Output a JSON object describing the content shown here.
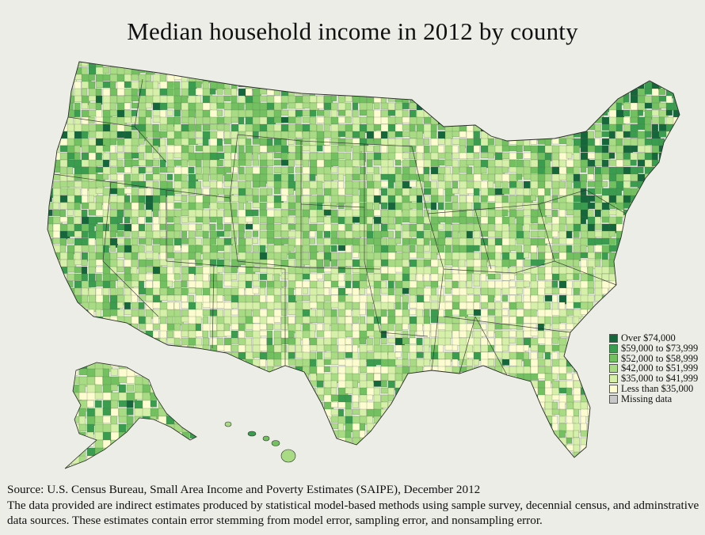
{
  "title": "Median household income in 2012 by county",
  "legend": {
    "items": [
      {
        "label": "Over $74,000",
        "color": "#15663a"
      },
      {
        "label": "$59,000 to $73,999",
        "color": "#3a9c4e"
      },
      {
        "label": "$52,000 to $58,999",
        "color": "#72c060"
      },
      {
        "label": "$42,000 to $51,999",
        "color": "#a8db83"
      },
      {
        "label": "$35,000 to $41,999",
        "color": "#d6efa9"
      },
      {
        "label": "Less than $35,000",
        "color": "#fcfcd0"
      },
      {
        "label": "Missing data",
        "color": "#c8c8c8"
      }
    ]
  },
  "source": {
    "line1": "Source: U.S. Census Bureau, Small Area Income and Poverty Estimates (SAIPE), December 2012",
    "line2": "The data provided are indirect estimates produced by statistical model-based methods using sample survey, decennial census, and adminstrative data sources. These estimates contain error stemming from model error, sampling error, and nonsampling error."
  },
  "colors": {
    "background": "#ecede6",
    "border": "#2a2a2a"
  }
}
